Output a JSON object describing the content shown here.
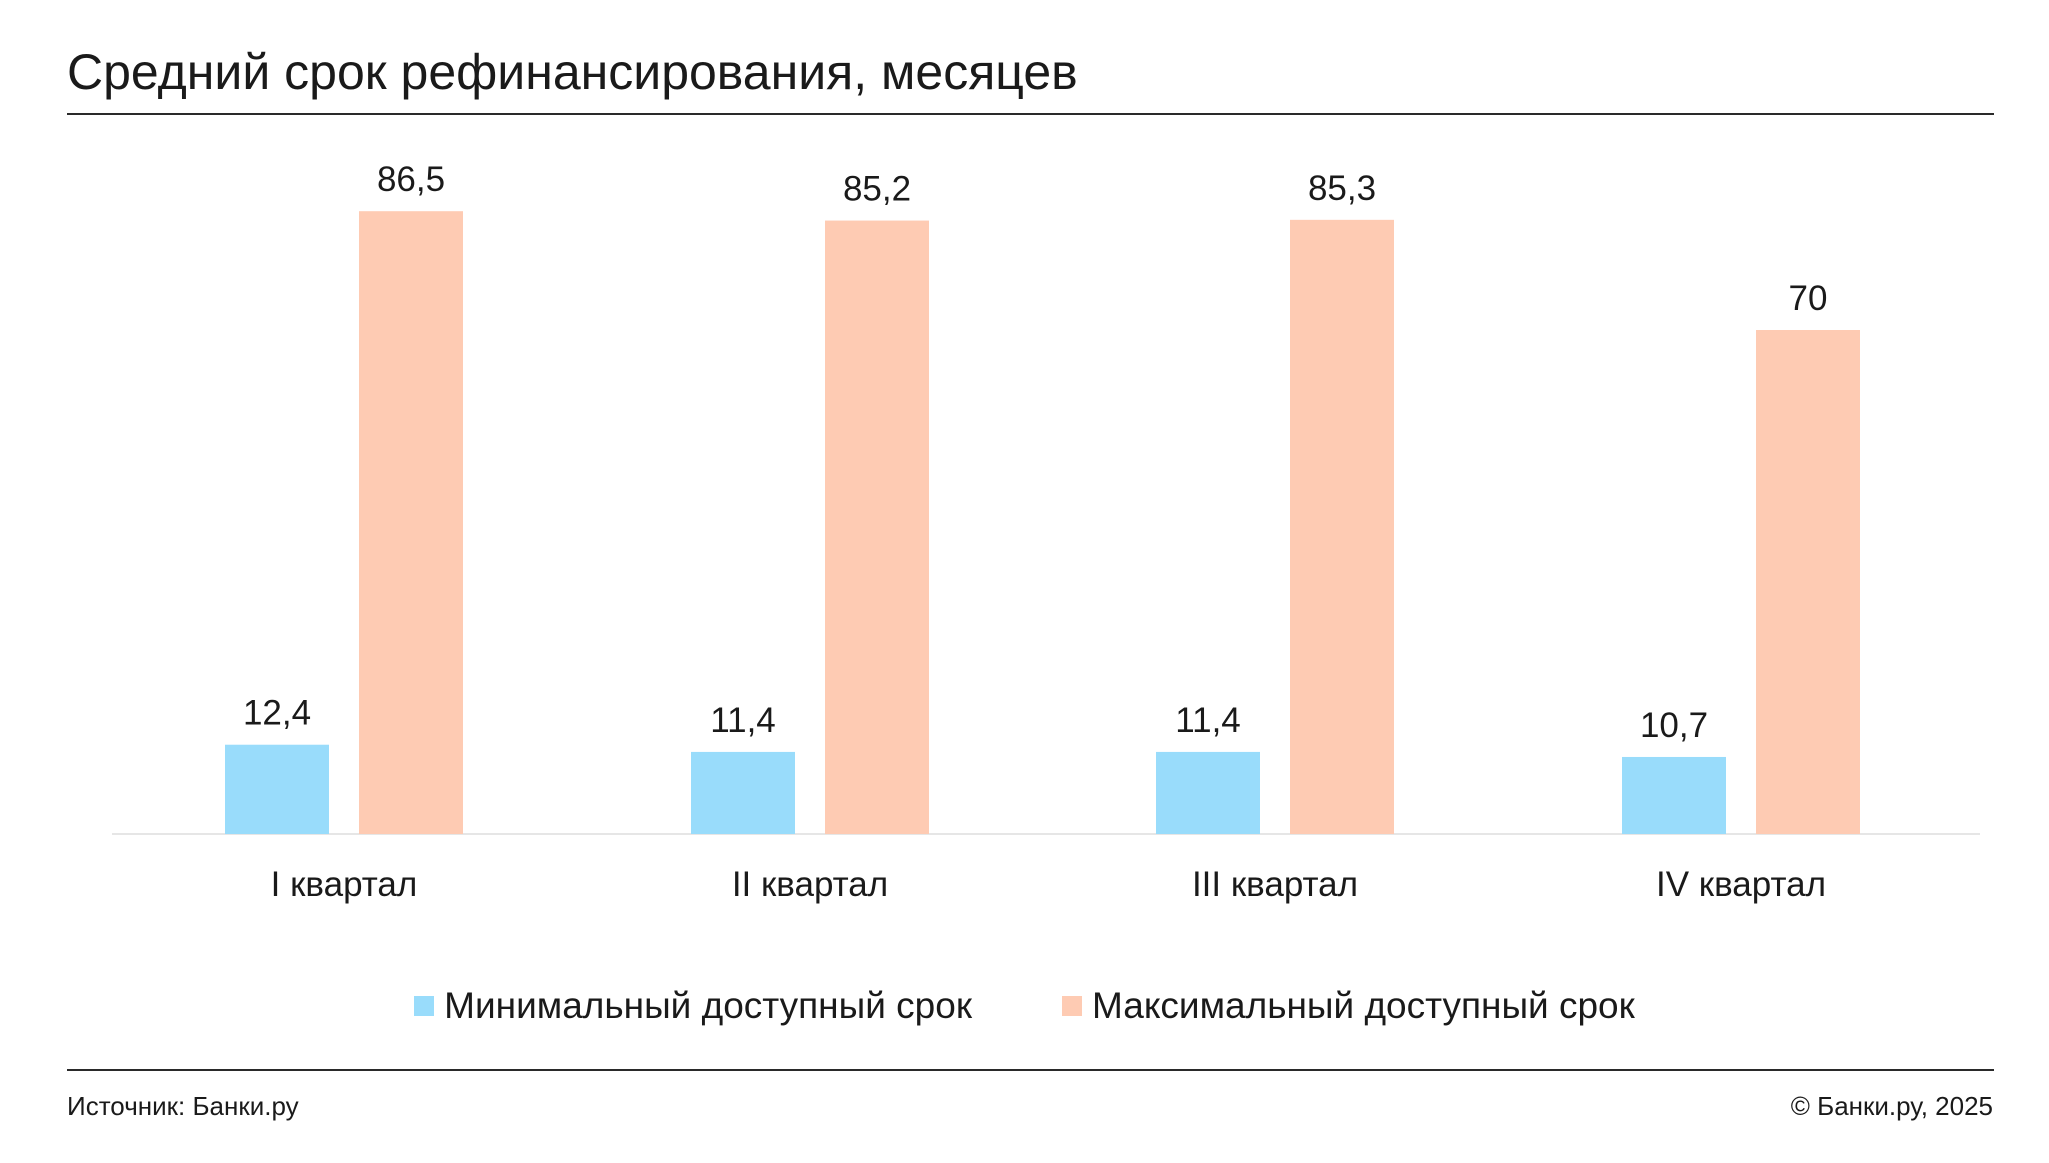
{
  "title": "Средний срок рефинансирования, месяцев",
  "source": "Источник: Банки.ру",
  "copyright": "© Банки.ру, 2025",
  "colors": {
    "min": "#99dcfb",
    "max": "#fecbb3",
    "text": "#1a1a1a",
    "baseline": "#e6e6e6"
  },
  "chart_data": {
    "type": "bar",
    "title": "Средний срок рефинансирования, месяцев",
    "xlabel": "",
    "ylabel": "",
    "ylim": [
      0,
      90
    ],
    "grid": false,
    "legend_position": "bottom",
    "categories": [
      "I квартал",
      "II квартал",
      "III квартал",
      "IV квартал"
    ],
    "series": [
      {
        "name": "Минимальный доступный срок",
        "values": [
          12.4,
          11.4,
          11.4,
          10.7
        ],
        "labels": [
          "12,4",
          "11,4",
          "11,4",
          "10,7"
        ],
        "color": "#99dcfb"
      },
      {
        "name": "Максимальный доступный срок",
        "values": [
          86.5,
          85.2,
          85.3,
          70
        ],
        "labels": [
          "86,5",
          "85,2",
          "85,3",
          "70"
        ],
        "color": "#fecbb3"
      }
    ]
  }
}
